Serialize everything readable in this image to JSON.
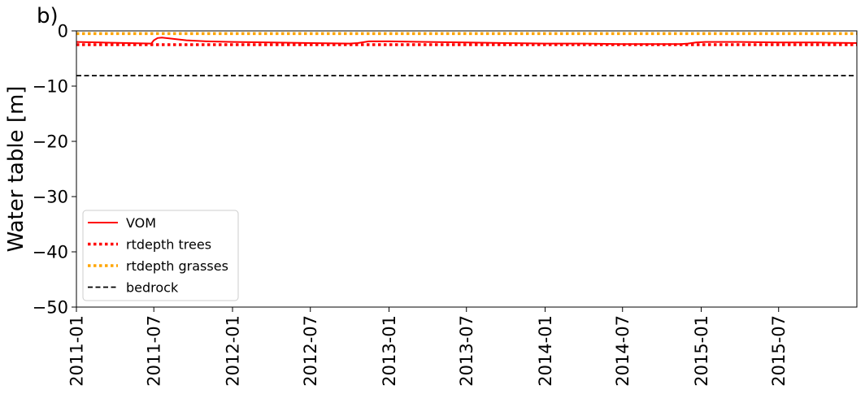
{
  "chart_data": {
    "type": "line",
    "panel_label": "b)",
    "title": "",
    "xlabel": "",
    "ylabel": "Water table [m]",
    "ylim": [
      -50,
      0
    ],
    "xlim": [
      "2011-01-01",
      "2015-12-31"
    ],
    "yticks": [
      0,
      -10,
      -20,
      -30,
      -40,
      -50
    ],
    "ytick_labels": [
      "0",
      "−10",
      "−20",
      "−30",
      "−40",
      "−50"
    ],
    "xticks": [
      "2011-01",
      "2011-07",
      "2012-01",
      "2012-07",
      "2013-01",
      "2013-07",
      "2014-01",
      "2014-07",
      "2015-01",
      "2015-07"
    ],
    "grid": false,
    "legend_position": "lower-left",
    "series": [
      {
        "name": "VOM",
        "style": "solid",
        "color": "#ff0000",
        "x": [
          "2011-01-01",
          "2011-03-01",
          "2011-05-01",
          "2011-06-25",
          "2011-07-01",
          "2011-07-10",
          "2011-07-20",
          "2011-08-10",
          "2011-09-15",
          "2011-11-01",
          "2012-01-01",
          "2012-04-01",
          "2012-07-01",
          "2012-10-01",
          "2012-10-20",
          "2012-11-15",
          "2013-01-01",
          "2013-04-01",
          "2013-07-01",
          "2013-10-01",
          "2014-01-01",
          "2014-04-01",
          "2014-07-01",
          "2014-10-01",
          "2014-11-15",
          "2014-12-01",
          "2014-12-20",
          "2015-01-10",
          "2015-04-01",
          "2015-07-01",
          "2015-10-01",
          "2015-12-31"
        ],
        "y": [
          -2.0,
          -2.1,
          -2.2,
          -2.3,
          -1.7,
          -1.3,
          -1.2,
          -1.4,
          -1.7,
          -1.9,
          -2.0,
          -2.1,
          -2.2,
          -2.3,
          -2.2,
          -1.9,
          -1.9,
          -2.0,
          -2.1,
          -2.2,
          -2.3,
          -2.3,
          -2.4,
          -2.4,
          -2.4,
          -2.3,
          -2.1,
          -2.0,
          -2.0,
          -2.1,
          -2.1,
          -2.2
        ]
      },
      {
        "name": "rtdepth trees",
        "style": "dotted",
        "color": "#ff0000",
        "x": [
          "2011-01-01",
          "2015-12-31"
        ],
        "y": [
          -2.5,
          -2.5
        ]
      },
      {
        "name": "rtdepth grasses",
        "style": "dotted",
        "color": "#ffa500",
        "x": [
          "2011-01-01",
          "2015-12-31"
        ],
        "y": [
          -0.5,
          -0.5
        ]
      },
      {
        "name": "bedrock",
        "style": "dashed",
        "color": "#000000",
        "x": [
          "2011-01-01",
          "2015-12-31"
        ],
        "y": [
          -8.1,
          -8.1
        ]
      }
    ]
  }
}
